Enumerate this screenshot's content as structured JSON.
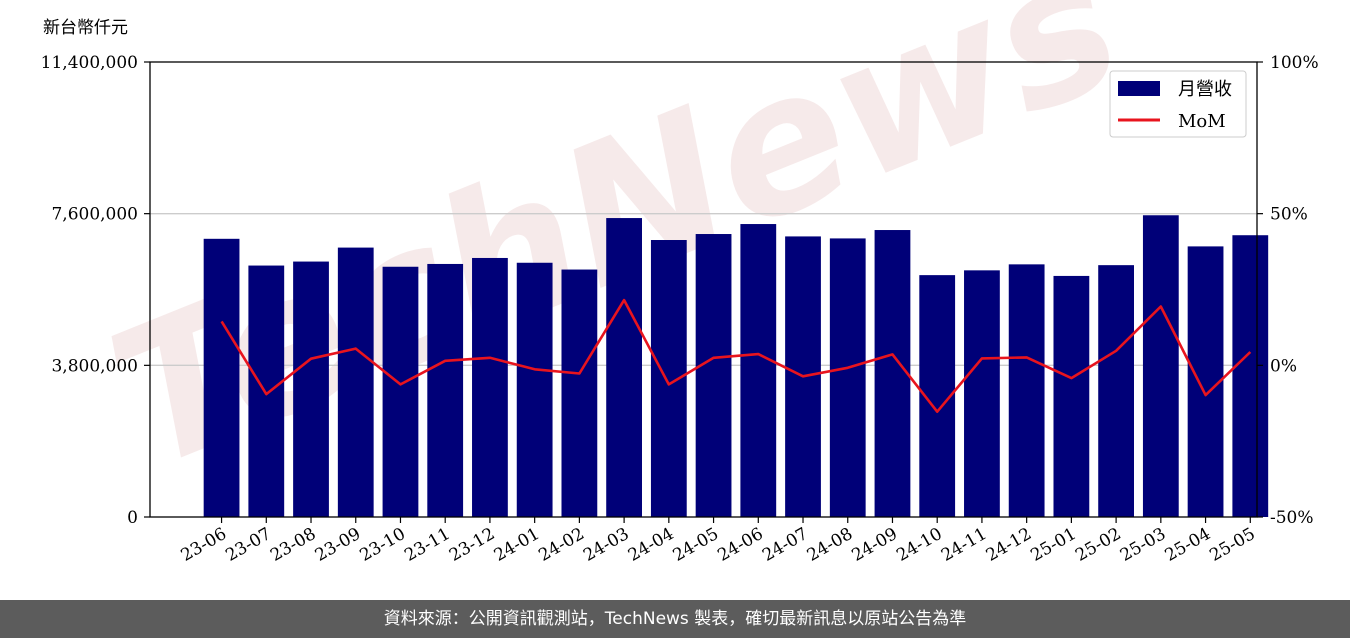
{
  "unit_label": "新台幣仟元",
  "watermark": "TechNews",
  "footer": "資料來源：公開資訊觀測站，TechNews 製表，確切最新訊息以原站公告為準",
  "colors": {
    "bar": "#000078",
    "line": "#e8141e",
    "grid": "#cccccc"
  },
  "chart_data": {
    "type": "bar",
    "categories": [
      "23-06",
      "23-07",
      "23-08",
      "23-09",
      "23-10",
      "23-11",
      "23-12",
      "24-01",
      "24-02",
      "24-03",
      "24-04",
      "24-05",
      "24-06",
      "24-07",
      "24-08",
      "24-09",
      "24-10",
      "24-11",
      "24-12",
      "25-01",
      "25-02",
      "25-03",
      "25-04",
      "25-05"
    ],
    "y_left": {
      "ylim": [
        0,
        11400000
      ],
      "ticks": [
        0,
        3800000,
        7600000,
        11400000
      ],
      "tick_labels": [
        "0",
        "3,800,000",
        "7,600,000",
        "11,400,000"
      ]
    },
    "y_right": {
      "ylim": [
        -50,
        100
      ],
      "ticks": [
        -50,
        0,
        50,
        100
      ],
      "tick_labels": [
        "-50%",
        "0%",
        "50%",
        "100%"
      ]
    },
    "series": [
      {
        "name": "月營收",
        "type": "bar",
        "axis": "left",
        "values": [
          6970000,
          6300000,
          6400000,
          6750000,
          6270000,
          6340000,
          6490000,
          6370000,
          6200000,
          7490000,
          6940000,
          7090000,
          7340000,
          7030000,
          6980000,
          7190000,
          6060000,
          6180000,
          6330000,
          6040000,
          6310000,
          7560000,
          6780000,
          7060000
        ]
      },
      {
        "name": "MoM",
        "type": "line",
        "axis": "right",
        "values": [
          14.5,
          -9.5,
          2.2,
          5.5,
          -6.3,
          1.5,
          2.5,
          -1.3,
          -2.7,
          21.5,
          -6.3,
          2.5,
          3.7,
          -3.6,
          -0.8,
          3.6,
          -15.3,
          2.3,
          2.6,
          -4.2,
          4.8,
          19.4,
          -9.8,
          4.4
        ]
      }
    ],
    "legend": "top-right",
    "grid": "horizontal"
  }
}
